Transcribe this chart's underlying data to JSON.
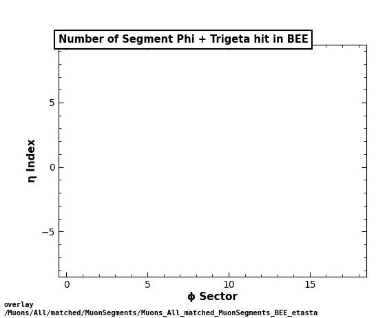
{
  "title": "Number of Segment Phi + Trigeta hit in BEE",
  "xlabel": "ϕ Sector",
  "ylabel": "η Index",
  "xlim": [
    -0.5,
    18.5
  ],
  "ylim": [
    -8.5,
    9.5
  ],
  "xticks": [
    0,
    5,
    10,
    15
  ],
  "yticks": [
    -5,
    0,
    5
  ],
  "background_color": "#ffffff",
  "plot_bg_color": "#ffffff",
  "caption_line1": "overlay",
  "caption_line2": "/Muons/All/matched/MuonSegments/Muons_All_matched_MuonSegments_BEE_etasta",
  "title_fontsize": 10.5,
  "axis_label_fontsize": 11,
  "tick_fontsize": 10,
  "caption_fontsize": 7.5
}
